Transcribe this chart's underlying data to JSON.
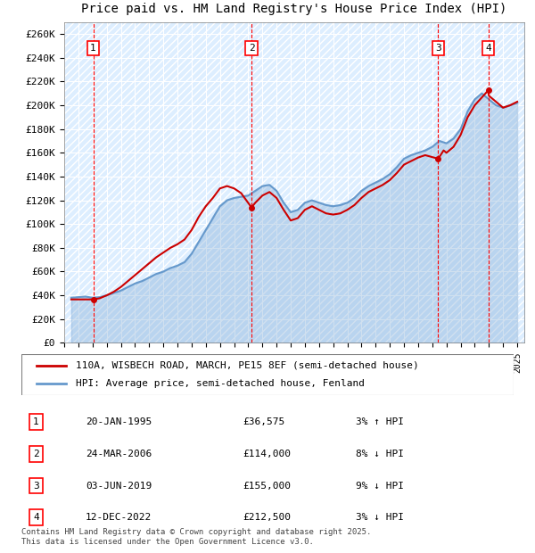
{
  "title": "110A, WISBECH ROAD, MARCH, PE15 8EF",
  "subtitle": "Price paid vs. HM Land Registry's House Price Index (HPI)",
  "ylabel_ticks": [
    "£0",
    "£20K",
    "£40K",
    "£60K",
    "£80K",
    "£100K",
    "£120K",
    "£140K",
    "£160K",
    "£180K",
    "£200K",
    "£220K",
    "£240K",
    "£260K"
  ],
  "ytick_values": [
    0,
    20000,
    40000,
    60000,
    80000,
    100000,
    120000,
    140000,
    160000,
    180000,
    200000,
    220000,
    240000,
    260000
  ],
  "ylim": [
    0,
    270000
  ],
  "xlim_start": 1993.0,
  "xlim_end": 2025.5,
  "background_color": "#ddeeff",
  "plot_bg": "#ddeeff",
  "hatch_color": "#ffffff",
  "grid_color": "#ffffff",
  "transactions": [
    {
      "num": 1,
      "date": "20-JAN-1995",
      "price": 36575,
      "year": 1995.05,
      "pct": "3%",
      "dir": "↑"
    },
    {
      "num": 2,
      "date": "24-MAR-2006",
      "price": 114000,
      "year": 2006.23,
      "pct": "8%",
      "dir": "↓"
    },
    {
      "num": 3,
      "date": "03-JUN-2019",
      "price": 155000,
      "year": 2019.42,
      "pct": "9%",
      "dir": "↓"
    },
    {
      "num": 4,
      "date": "12-DEC-2022",
      "price": 212500,
      "year": 2022.95,
      "pct": "3%",
      "dir": "↓"
    }
  ],
  "red_line_color": "#cc0000",
  "blue_line_color": "#6699cc",
  "legend1": "110A, WISBECH ROAD, MARCH, PE15 8EF (semi-detached house)",
  "legend2": "HPI: Average price, semi-detached house, Fenland",
  "footer": "Contains HM Land Registry data © Crown copyright and database right 2025.\nThis data is licensed under the Open Government Licence v3.0.",
  "hpi_data": {
    "years": [
      1993.5,
      1994.0,
      1994.5,
      1995.0,
      1995.5,
      1996.0,
      1996.5,
      1997.0,
      1997.5,
      1998.0,
      1998.5,
      1999.0,
      1999.5,
      2000.0,
      2000.5,
      2001.0,
      2001.5,
      2002.0,
      2002.5,
      2003.0,
      2003.5,
      2004.0,
      2004.5,
      2005.0,
      2005.5,
      2006.0,
      2006.5,
      2007.0,
      2007.5,
      2008.0,
      2008.5,
      2009.0,
      2009.5,
      2010.0,
      2010.5,
      2011.0,
      2011.5,
      2012.0,
      2012.5,
      2013.0,
      2013.5,
      2014.0,
      2014.5,
      2015.0,
      2015.5,
      2016.0,
      2016.5,
      2017.0,
      2017.5,
      2018.0,
      2018.5,
      2019.0,
      2019.5,
      2020.0,
      2020.5,
      2021.0,
      2021.5,
      2022.0,
      2022.5,
      2023.0,
      2023.5,
      2024.0,
      2024.5,
      2025.0
    ],
    "values": [
      38000,
      38500,
      39000,
      38000,
      38500,
      40000,
      42000,
      44000,
      47000,
      50000,
      52000,
      55000,
      58000,
      60000,
      63000,
      65000,
      68000,
      75000,
      85000,
      95000,
      105000,
      115000,
      120000,
      122000,
      123000,
      124000,
      128000,
      132000,
      133000,
      128000,
      118000,
      110000,
      112000,
      118000,
      120000,
      118000,
      116000,
      115000,
      116000,
      118000,
      122000,
      128000,
      132000,
      135000,
      138000,
      142000,
      148000,
      155000,
      158000,
      160000,
      162000,
      165000,
      170000,
      168000,
      172000,
      180000,
      195000,
      205000,
      210000,
      205000,
      200000,
      198000,
      200000,
      202000
    ]
  },
  "red_line_data": {
    "years": [
      1993.5,
      1994.0,
      1994.5,
      1995.05,
      1995.5,
      1996.0,
      1996.5,
      1997.0,
      1997.5,
      1998.0,
      1998.5,
      1999.0,
      1999.5,
      2000.0,
      2000.5,
      2001.0,
      2001.5,
      2002.0,
      2002.5,
      2003.0,
      2003.5,
      2004.0,
      2004.5,
      2005.0,
      2005.5,
      2006.23,
      2006.5,
      2007.0,
      2007.5,
      2008.0,
      2008.5,
      2009.0,
      2009.5,
      2010.0,
      2010.5,
      2011.0,
      2011.5,
      2012.0,
      2012.5,
      2013.0,
      2013.5,
      2014.0,
      2014.5,
      2015.0,
      2015.5,
      2016.0,
      2016.5,
      2017.0,
      2017.5,
      2018.0,
      2018.5,
      2019.42,
      2019.8,
      2020.0,
      2020.5,
      2021.0,
      2021.5,
      2022.0,
      2022.95,
      2023.0,
      2023.5,
      2024.0,
      2024.5,
      2025.0
    ],
    "values": [
      36575,
      36575,
      36575,
      36575,
      37500,
      40000,
      43000,
      47000,
      52000,
      57000,
      62000,
      67000,
      72000,
      76000,
      80000,
      83000,
      87000,
      95000,
      106000,
      115000,
      122000,
      130000,
      132000,
      130000,
      126000,
      114000,
      118000,
      124000,
      127000,
      122000,
      112000,
      103000,
      105000,
      112000,
      115000,
      112000,
      109000,
      108000,
      109000,
      112000,
      116000,
      122000,
      127000,
      130000,
      133000,
      137000,
      143000,
      150000,
      153000,
      156000,
      158000,
      155000,
      162000,
      160000,
      165000,
      175000,
      190000,
      200000,
      212500,
      208000,
      203000,
      198000,
      200000,
      203000
    ]
  }
}
